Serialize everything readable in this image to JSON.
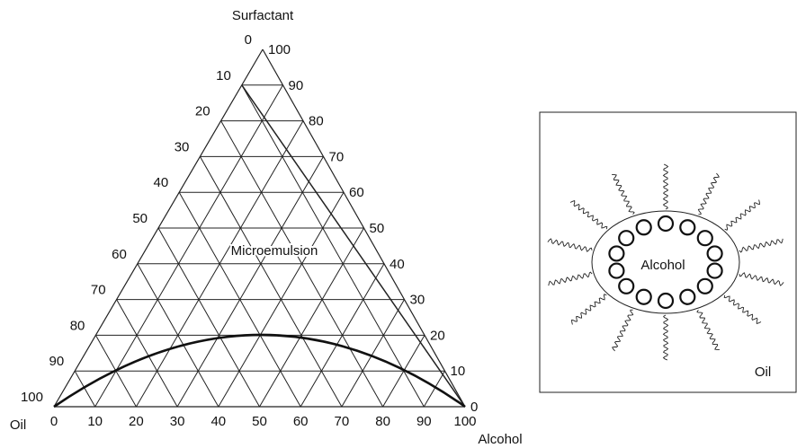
{
  "diagram": {
    "apex_labels": {
      "top": "Surfactant",
      "left": "Oil",
      "right": "Alcohol"
    },
    "left_ticks": [
      0,
      10,
      20,
      30,
      40,
      50,
      60,
      70,
      80,
      90,
      100
    ],
    "right_ticks": [
      100,
      90,
      80,
      70,
      60,
      50,
      40,
      30,
      20,
      10,
      0
    ],
    "bottom_ticks": [
      0,
      10,
      20,
      30,
      40,
      50,
      60,
      70,
      80,
      90,
      100
    ],
    "region_label": "Microemulsion"
  },
  "inset": {
    "core_label": "Alcohol",
    "medium_label": "Oil"
  }
}
